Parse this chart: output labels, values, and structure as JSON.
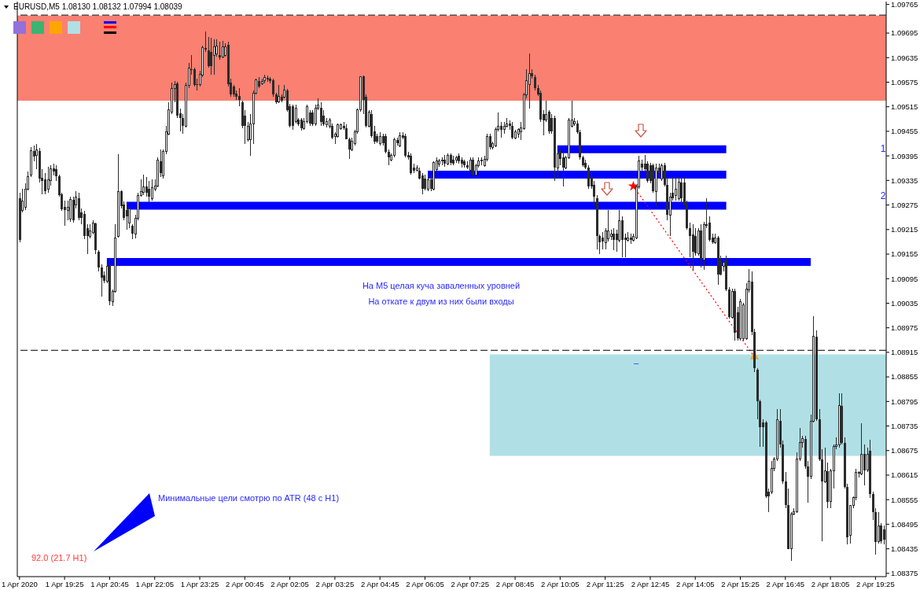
{
  "chart_data": {
    "type": "candlestick",
    "title": "EURUSD,M5  1.08130 1.08132 1.07994 1.08039",
    "color": "#2b2b2b",
    "x": [
      "2020-04-01T18:05",
      "2020-04-01T18:10",
      "2020-04-01T18:15",
      "2020-04-01T18:20",
      "2020-04-01T18:25",
      "2020-04-01T18:30",
      "2020-04-01T18:35",
      "2020-04-01T18:40",
      "2020-04-01T18:45",
      "2020-04-01T18:50",
      "2020-04-01T18:55",
      "2020-04-01T19:00",
      "2020-04-01T19:05",
      "2020-04-01T19:10",
      "2020-04-01T19:15",
      "2020-04-01T19:20",
      "2020-04-01T19:25",
      "2020-04-01T19:30",
      "2020-04-01T19:35",
      "2020-04-01T19:40",
      "2020-04-01T19:45",
      "2020-04-01T19:50",
      "2020-04-01T19:55",
      "2020-04-01T20:00",
      "2020-04-01T20:05",
      "2020-04-01T20:10",
      "2020-04-01T20:15",
      "2020-04-01T20:20",
      "2020-04-01T20:25",
      "2020-04-01T20:30",
      "2020-04-01T20:35",
      "2020-04-01T20:40",
      "2020-04-01T20:45",
      "2020-04-01T20:50",
      "2020-04-01T20:55",
      "2020-04-01T21:00",
      "2020-04-01T21:05",
      "2020-04-01T21:10",
      "2020-04-01T21:15",
      "2020-04-01T21:20",
      "2020-04-01T21:25",
      "2020-04-01T21:30",
      "2020-04-01T21:35",
      "2020-04-01T21:40",
      "2020-04-01T21:45",
      "2020-04-01T21:50",
      "2020-04-01T21:55",
      "2020-04-01T22:00",
      "2020-04-01T22:05",
      "2020-04-01T22:10",
      "2020-04-01T22:15",
      "2020-04-01T22:20",
      "2020-04-01T22:25",
      "2020-04-01T22:30",
      "2020-04-01T22:35",
      "2020-04-01T22:40",
      "2020-04-01T22:45",
      "2020-04-01T22:50",
      "2020-04-01T22:55",
      "2020-04-01T23:00",
      "2020-04-01T23:05",
      "2020-04-01T23:10",
      "2020-04-01T23:15",
      "2020-04-01T23:20",
      "2020-04-01T23:25",
      "2020-04-01T23:30",
      "2020-04-01T23:35",
      "2020-04-01T23:40",
      "2020-04-01T23:45",
      "2020-04-01T23:50",
      "2020-04-01T23:55",
      "2020-04-02T00:00",
      "2020-04-02T00:05",
      "2020-04-02T00:10",
      "2020-04-02T00:15",
      "2020-04-02T00:20",
      "2020-04-02T00:25",
      "2020-04-02T00:30",
      "2020-04-02T00:35",
      "2020-04-02T00:40",
      "2020-04-02T00:45",
      "2020-04-02T00:50",
      "2020-04-02T00:55",
      "2020-04-02T01:00",
      "2020-04-02T01:05",
      "2020-04-02T01:10",
      "2020-04-02T01:15",
      "2020-04-02T01:20",
      "2020-04-02T01:25",
      "2020-04-02T01:30",
      "2020-04-02T01:35",
      "2020-04-02T01:40",
      "2020-04-02T01:45",
      "2020-04-02T01:50",
      "2020-04-02T01:55",
      "2020-04-02T02:00",
      "2020-04-02T02:05",
      "2020-04-02T02:10",
      "2020-04-02T02:15",
      "2020-04-02T02:20",
      "2020-04-02T02:25",
      "2020-04-02T02:30",
      "2020-04-02T02:35",
      "2020-04-02T02:40",
      "2020-04-02T02:45",
      "2020-04-02T02:50",
      "2020-04-02T02:55",
      "2020-04-02T03:00",
      "2020-04-02T03:05",
      "2020-04-02T03:10",
      "2020-04-02T03:15",
      "2020-04-02T03:20",
      "2020-04-02T03:25",
      "2020-04-02T03:30",
      "2020-04-02T03:35",
      "2020-04-02T03:40",
      "2020-04-02T03:45",
      "2020-04-02T03:50",
      "2020-04-02T03:55",
      "2020-04-02T04:00",
      "2020-04-02T04:05",
      "2020-04-02T04:10",
      "2020-04-02T04:15",
      "2020-04-02T04:20",
      "2020-04-02T04:25",
      "2020-04-02T04:30",
      "2020-04-02T04:35",
      "2020-04-02T04:40",
      "2020-04-02T04:45",
      "2020-04-02T04:50",
      "2020-04-02T04:55",
      "2020-04-02T05:00",
      "2020-04-02T05:05",
      "2020-04-02T05:10",
      "2020-04-02T05:15",
      "2020-04-02T05:20",
      "2020-04-02T05:25",
      "2020-04-02T05:30",
      "2020-04-02T05:35",
      "2020-04-02T05:40",
      "2020-04-02T05:45",
      "2020-04-02T05:50",
      "2020-04-02T05:55",
      "2020-04-02T06:00",
      "2020-04-02T06:05",
      "2020-04-02T06:10",
      "2020-04-02T06:15",
      "2020-04-02T06:20",
      "2020-04-02T06:25",
      "2020-04-02T06:30",
      "2020-04-02T06:35",
      "2020-04-02T06:40",
      "2020-04-02T06:45",
      "2020-04-02T06:50",
      "2020-04-02T06:55",
      "2020-04-02T07:00",
      "2020-04-02T07:05",
      "2020-04-02T07:10",
      "2020-04-02T07:15",
      "2020-04-02T07:20",
      "2020-04-02T07:25",
      "2020-04-02T07:30",
      "2020-04-02T07:35",
      "2020-04-02T07:40",
      "2020-04-02T07:45",
      "2020-04-02T07:50",
      "2020-04-02T07:55",
      "2020-04-02T08:00",
      "2020-04-02T08:05",
      "2020-04-02T08:10",
      "2020-04-02T08:15",
      "2020-04-02T08:20",
      "2020-04-02T08:25",
      "2020-04-02T08:30",
      "2020-04-02T08:35",
      "2020-04-02T08:40",
      "2020-04-02T08:45",
      "2020-04-02T08:50",
      "2020-04-02T08:55",
      "2020-04-02T09:00",
      "2020-04-02T09:05",
      "2020-04-02T09:10",
      "2020-04-02T09:15",
      "2020-04-02T09:20",
      "2020-04-02T09:25",
      "2020-04-02T09:30",
      "2020-04-02T09:35",
      "2020-04-02T09:40",
      "2020-04-02T09:45",
      "2020-04-02T09:50",
      "2020-04-02T09:55",
      "2020-04-02T10:00",
      "2020-04-02T10:05",
      "2020-04-02T10:10",
      "2020-04-02T10:15",
      "2020-04-02T10:20",
      "2020-04-02T10:25",
      "2020-04-02T10:30",
      "2020-04-02T10:35",
      "2020-04-02T10:40",
      "2020-04-02T10:45",
      "2020-04-02T10:50",
      "2020-04-02T10:55",
      "2020-04-02T11:00",
      "2020-04-02T11:05",
      "2020-04-02T11:10",
      "2020-04-02T11:15",
      "2020-04-02T11:20",
      "2020-04-02T11:25",
      "2020-04-02T11:30",
      "2020-04-02T11:35",
      "2020-04-02T11:40",
      "2020-04-02T11:45",
      "2020-04-02T11:50",
      "2020-04-02T11:55",
      "2020-04-02T12:00",
      "2020-04-02T12:05",
      "2020-04-02T12:10",
      "2020-04-02T12:15",
      "2020-04-02T12:20",
      "2020-04-02T12:25",
      "2020-04-02T12:30",
      "2020-04-02T12:35",
      "2020-04-02T12:40",
      "2020-04-02T12:45",
      "2020-04-02T12:50",
      "2020-04-02T12:55",
      "2020-04-02T13:00",
      "2020-04-02T13:05",
      "2020-04-02T13:10",
      "2020-04-02T13:15",
      "2020-04-02T13:20",
      "2020-04-02T13:25",
      "2020-04-02T13:30",
      "2020-04-02T13:35",
      "2020-04-02T13:40",
      "2020-04-02T13:45",
      "2020-04-02T13:50",
      "2020-04-02T13:55",
      "2020-04-02T14:00",
      "2020-04-02T14:05",
      "2020-04-02T14:10",
      "2020-04-02T14:15",
      "2020-04-02T14:20",
      "2020-04-02T14:25",
      "2020-04-02T14:30",
      "2020-04-02T14:35",
      "2020-04-02T14:40",
      "2020-04-02T14:45",
      "2020-04-02T14:50",
      "2020-04-02T14:55",
      "2020-04-02T15:00",
      "2020-04-02T15:05",
      "2020-04-02T15:10",
      "2020-04-02T15:15",
      "2020-04-02T15:20",
      "2020-04-02T15:25",
      "2020-04-02T15:30",
      "2020-04-02T15:35",
      "2020-04-02T15:40",
      "2020-04-02T15:45",
      "2020-04-02T15:50",
      "2020-04-02T15:55",
      "2020-04-02T16:00",
      "2020-04-02T16:05",
      "2020-04-02T16:10",
      "2020-04-02T16:15",
      "2020-04-02T16:20",
      "2020-04-02T16:25",
      "2020-04-02T16:30",
      "2020-04-02T16:35",
      "2020-04-02T16:40",
      "2020-04-02T16:45",
      "2020-04-02T16:50",
      "2020-04-02T16:55",
      "2020-04-02T17:00",
      "2020-04-02T17:05",
      "2020-04-02T17:10",
      "2020-04-02T17:15",
      "2020-04-02T17:20",
      "2020-04-02T17:25",
      "2020-04-02T17:30",
      "2020-04-02T17:35",
      "2020-04-02T17:40",
      "2020-04-02T17:45",
      "2020-04-02T17:50",
      "2020-04-02T17:55",
      "2020-04-02T18:00",
      "2020-04-02T18:05",
      "2020-04-02T18:10",
      "2020-04-02T18:15",
      "2020-04-02T18:20",
      "2020-04-02T18:25",
      "2020-04-02T18:30",
      "2020-04-02T18:35",
      "2020-04-02T18:40",
      "2020-04-02T18:45",
      "2020-04-02T18:50",
      "2020-04-02T18:55",
      "2020-04-02T19:00",
      "2020-04-02T19:05",
      "2020-04-02T19:10",
      "2020-04-02T19:15",
      "2020-04-02T19:20",
      "2020-04-02T19:25",
      "2020-04-02T19:30",
      "2020-04-02T19:35",
      "2020-04-02T19:40"
    ],
    "ohlc": [
      [
        1.09291,
        1.09305,
        1.09183,
        1.09189
      ],
      [
        1.09262,
        1.09314,
        1.09256,
        1.09285
      ],
      [
        1.0927,
        1.09328,
        1.09262,
        1.09314
      ],
      [
        1.09314,
        1.09357,
        1.0931,
        1.09345
      ],
      [
        1.09349,
        1.09416,
        1.09343,
        1.09407
      ],
      [
        1.09407,
        1.0942,
        1.09382,
        1.09393
      ],
      [
        1.09397,
        1.09424,
        1.09362,
        1.0941
      ],
      [
        1.09407,
        1.09414,
        1.0933,
        1.09339
      ],
      [
        1.09341,
        1.09362,
        1.09301,
        1.09334
      ],
      [
        1.09337,
        1.09353,
        1.09301,
        1.09308
      ],
      [
        1.09314,
        1.09368,
        1.09305,
        1.09337
      ],
      [
        1.09334,
        1.09372,
        1.09322,
        1.09364
      ],
      [
        1.09364,
        1.09376,
        1.09347,
        1.09357
      ],
      [
        1.09362,
        1.09372,
        1.09334,
        1.09345
      ],
      [
        1.09345,
        1.09349,
        1.09295,
        1.09299
      ],
      [
        1.09301,
        1.09305,
        1.0926,
        1.09264
      ],
      [
        1.0927,
        1.09285,
        1.09224,
        1.09262
      ],
      [
        1.09262,
        1.09285,
        1.09237,
        1.0927
      ],
      [
        1.09241,
        1.09295,
        1.09233,
        1.09289
      ],
      [
        1.09287,
        1.09295,
        1.09231,
        1.09237
      ],
      [
        1.09276,
        1.09308,
        1.09266,
        1.09295
      ],
      [
        1.09291,
        1.09305,
        1.09237,
        1.09243
      ],
      [
        1.09256,
        1.09266,
        1.09228,
        1.09243
      ],
      [
        1.09253,
        1.0926,
        1.09191,
        1.09199
      ],
      [
        1.09218,
        1.09228,
        1.09155,
        1.09199
      ],
      [
        1.09199,
        1.09228,
        1.09193,
        1.09212
      ],
      [
        1.09208,
        1.09237,
        1.09203,
        1.0923
      ],
      [
        1.0923,
        1.09231,
        1.09155,
        1.09164
      ],
      [
        1.0916,
        1.09164,
        1.09112,
        1.09122
      ],
      [
        1.09122,
        1.09131,
        1.09051,
        1.09097
      ],
      [
        1.09103,
        1.09112,
        1.09083,
        1.09089
      ],
      [
        1.09089,
        1.09131,
        1.09083,
        1.09126
      ],
      [
        1.09128,
        1.09141,
        1.09031,
        1.09039
      ],
      [
        1.09039,
        1.09068,
        1.09029,
        1.09064
      ],
      [
        1.09064,
        1.09228,
        1.0906,
        1.09195
      ],
      [
        1.09199,
        1.09399,
        1.09195,
        1.09308
      ],
      [
        1.09308,
        1.0931,
        1.09266,
        1.09272
      ],
      [
        1.09276,
        1.09283,
        1.09237,
        1.09243
      ],
      [
        1.09262,
        1.09276,
        1.09214,
        1.09247
      ],
      [
        1.09231,
        1.09272,
        1.09218,
        1.09266
      ],
      [
        1.09224,
        1.09228,
        1.09191,
        1.09205
      ],
      [
        1.09205,
        1.09251,
        1.09193,
        1.09243
      ],
      [
        1.09243,
        1.09305,
        1.09237,
        1.09299
      ],
      [
        1.09299,
        1.09337,
        1.09295,
        1.09308
      ],
      [
        1.09305,
        1.09349,
        1.09299,
        1.0932
      ],
      [
        1.0932,
        1.09343,
        1.09295,
        1.09305
      ],
      [
        1.09314,
        1.09334,
        1.0928,
        1.09295
      ],
      [
        1.09291,
        1.09337,
        1.09285,
        1.09318
      ],
      [
        1.09314,
        1.09337,
        1.09308,
        1.09322
      ],
      [
        1.09322,
        1.09391,
        1.09318,
        1.09385
      ],
      [
        1.09382,
        1.0941,
        1.09343,
        1.09353
      ],
      [
        1.09347,
        1.0941,
        1.09339,
        1.09405
      ],
      [
        1.09405,
        1.09468,
        1.09399,
        1.09453
      ],
      [
        1.09449,
        1.09526,
        1.09445,
        1.09507
      ],
      [
        1.09501,
        1.09574,
        1.09497,
        1.09559
      ],
      [
        1.09559,
        1.09578,
        1.09526,
        1.0957
      ],
      [
        1.09572,
        1.09576,
        1.09487,
        1.09493
      ],
      [
        1.09499,
        1.0951,
        1.09455,
        1.09487
      ],
      [
        1.09487,
        1.09497,
        1.09449,
        1.09468
      ],
      [
        1.09468,
        1.09574,
        1.09464,
        1.09568
      ],
      [
        1.09568,
        1.09622,
        1.09561,
        1.09609
      ],
      [
        1.09607,
        1.09641,
        1.09593,
        1.09605
      ],
      [
        1.09607,
        1.09611,
        1.09564,
        1.09568
      ],
      [
        1.0957,
        1.09584,
        1.09555,
        1.09568
      ],
      [
        1.0957,
        1.09603,
        1.09564,
        1.09595
      ],
      [
        1.09593,
        1.09664,
        1.09587,
        1.09659
      ],
      [
        1.09659,
        1.09699,
        1.09649,
        1.09655
      ],
      [
        1.09653,
        1.09686,
        1.09611,
        1.09614
      ],
      [
        1.09649,
        1.09684,
        1.09593,
        1.09614
      ],
      [
        1.09641,
        1.0968,
        1.09593,
        1.09661
      ],
      [
        1.09645,
        1.0968,
        1.09637,
        1.09664
      ],
      [
        1.09641,
        1.09674,
        1.0963,
        1.09636
      ],
      [
        1.09637,
        1.09676,
        1.09634,
        1.09662
      ],
      [
        1.09641,
        1.0967,
        1.09637,
        1.09661
      ],
      [
        1.09666,
        1.09674,
        1.09564,
        1.0957
      ],
      [
        1.09574,
        1.09584,
        1.09539,
        1.09545
      ],
      [
        1.09564,
        1.09568,
        1.09539,
        1.09545
      ],
      [
        1.09547,
        1.09555,
        1.09532,
        1.09539
      ],
      [
        1.09541,
        1.09561,
        1.09516,
        1.09532
      ],
      [
        1.09526,
        1.0953,
        1.09462,
        1.09468
      ],
      [
        1.09493,
        1.09507,
        1.09424,
        1.09468
      ],
      [
        1.09434,
        1.09478,
        1.0943,
        1.09468
      ],
      [
        1.09434,
        1.09497,
        1.09395,
        1.09474
      ],
      [
        1.09474,
        1.09555,
        1.09424,
        1.09549
      ],
      [
        1.09549,
        1.09584,
        1.09545,
        1.0958
      ],
      [
        1.09578,
        1.09587,
        1.09561,
        1.09564
      ],
      [
        1.09572,
        1.09584,
        1.09568,
        1.09576
      ],
      [
        1.09578,
        1.09593,
        1.09572,
        1.09586
      ],
      [
        1.09586,
        1.09591,
        1.09576,
        1.09582
      ],
      [
        1.09584,
        1.09587,
        1.09572,
        1.09578
      ],
      [
        1.0958,
        1.09584,
        1.09539,
        1.09545
      ],
      [
        1.09545,
        1.09549,
        1.09522,
        1.09526
      ],
      [
        1.09526,
        1.09568,
        1.09524,
        1.09541
      ],
      [
        1.09539,
        1.09545,
        1.09526,
        1.0953
      ],
      [
        1.09539,
        1.09568,
        1.09536,
        1.09555
      ],
      [
        1.09555,
        1.09559,
        1.09503,
        1.09507
      ],
      [
        1.09516,
        1.09522,
        1.09464,
        1.09468
      ],
      [
        1.09516,
        1.0952,
        1.09459,
        1.09468
      ],
      [
        1.09478,
        1.0952,
        1.09474,
        1.09512
      ],
      [
        1.09484,
        1.09487,
        1.09468,
        1.09472
      ],
      [
        1.09484,
        1.09487,
        1.09457,
        1.09462
      ],
      [
        1.09462,
        1.09487,
        1.09459,
        1.09478
      ],
      [
        1.09478,
        1.0952,
        1.09474,
        1.09516
      ],
      [
        1.09501,
        1.09507,
        1.09468,
        1.09474
      ],
      [
        1.09501,
        1.09507,
        1.09468,
        1.09472
      ],
      [
        1.09474,
        1.0952,
        1.09468,
        1.09512
      ],
      [
        1.09512,
        1.09536,
        1.09507,
        1.0952
      ],
      [
        1.09512,
        1.09526,
        1.09468,
        1.09478
      ],
      [
        1.09493,
        1.09507,
        1.09468,
        1.09472
      ],
      [
        1.09472,
        1.09487,
        1.09464,
        1.09478
      ],
      [
        1.09468,
        1.09487,
        1.09462,
        1.09482
      ],
      [
        1.09468,
        1.09474,
        1.09435,
        1.09439
      ],
      [
        1.09443,
        1.09453,
        1.09424,
        1.09449
      ],
      [
        1.09443,
        1.09474,
        1.09439,
        1.09472
      ],
      [
        1.09462,
        1.09474,
        1.09459,
        1.09472
      ],
      [
        1.09468,
        1.09478,
        1.09459,
        1.09462
      ],
      [
        1.09462,
        1.09472,
        1.09435,
        1.09435
      ],
      [
        1.09435,
        1.09439,
        1.09387,
        1.0941
      ],
      [
        1.0941,
        1.09439,
        1.09407,
        1.0943
      ],
      [
        1.09426,
        1.09459,
        1.0942,
        1.09453
      ],
      [
        1.09453,
        1.0951,
        1.09449,
        1.09507
      ],
      [
        1.09507,
        1.09589,
        1.09503,
        1.09589
      ],
      [
        1.09589,
        1.09591,
        1.09497,
        1.09532
      ],
      [
        1.09539,
        1.09545,
        1.09464,
        1.09468
      ],
      [
        1.09468,
        1.09507,
        1.09464,
        1.09501
      ],
      [
        1.09497,
        1.09507,
        1.09439,
        1.09443
      ],
      [
        1.09455,
        1.09468,
        1.09424,
        1.0943
      ],
      [
        1.09443,
        1.09449,
        1.09426,
        1.0943
      ],
      [
        1.09426,
        1.09453,
        1.0942,
        1.09443
      ],
      [
        1.09443,
        1.09449,
        1.0942,
        1.09426
      ],
      [
        1.09443,
        1.09449,
        1.09401,
        1.09405
      ],
      [
        1.09405,
        1.0941,
        1.09372,
        1.09391
      ],
      [
        1.09385,
        1.09401,
        1.09382,
        1.09397
      ],
      [
        1.09397,
        1.09439,
        1.09391,
        1.09434
      ],
      [
        1.09434,
        1.09439,
        1.0942,
        1.09426
      ],
      [
        1.0942,
        1.09453,
        1.09416,
        1.09445
      ],
      [
        1.09445,
        1.09453,
        1.09435,
        1.09439
      ],
      [
        1.09443,
        1.09449,
        1.09391,
        1.09395
      ],
      [
        1.09397,
        1.09405,
        1.09385,
        1.09391
      ],
      [
        1.09395,
        1.09401,
        1.09349,
        1.09353
      ],
      [
        1.09366,
        1.09376,
        1.09353,
        1.09359
      ],
      [
        1.09359,
        1.09372,
        1.09357,
        1.09366
      ],
      [
        1.09359,
        1.09366,
        1.09337,
        1.09339
      ],
      [
        1.09347,
        1.09353,
        1.09301,
        1.09314
      ],
      [
        1.09339,
        1.09349,
        1.0931,
        1.09314
      ],
      [
        1.09314,
        1.09343,
        1.09308,
        1.09337
      ],
      [
        1.09337,
        1.09349,
        1.09308,
        1.09314
      ],
      [
        1.09314,
        1.09382,
        1.0931,
        1.09378
      ],
      [
        1.09362,
        1.09391,
        1.09359,
        1.09382
      ],
      [
        1.09376,
        1.09387,
        1.09368,
        1.09382
      ],
      [
        1.09382,
        1.09391,
        1.09372,
        1.09385
      ],
      [
        1.09385,
        1.09397,
        1.09368,
        1.09376
      ],
      [
        1.09376,
        1.09401,
        1.09372,
        1.09397
      ],
      [
        1.09397,
        1.09401,
        1.09372,
        1.09378
      ],
      [
        1.09385,
        1.09395,
        1.09372,
        1.09376
      ],
      [
        1.09385,
        1.09395,
        1.09378,
        1.09391
      ],
      [
        1.09395,
        1.09401,
        1.09376,
        1.09382
      ],
      [
        1.09385,
        1.09391,
        1.09366,
        1.09376
      ],
      [
        1.09382,
        1.09385,
        1.09366,
        1.09372
      ],
      [
        1.09372,
        1.09382,
        1.09362,
        1.09366
      ],
      [
        1.09359,
        1.09391,
        1.09357,
        1.09385
      ],
      [
        1.09385,
        1.09391,
        1.09345,
        1.09349
      ],
      [
        1.09349,
        1.09376,
        1.09345,
        1.09372
      ],
      [
        1.09372,
        1.09391,
        1.09366,
        1.09382
      ],
      [
        1.09382,
        1.09391,
        1.09372,
        1.09385
      ],
      [
        1.09372,
        1.09395,
        1.09368,
        1.09387
      ],
      [
        1.09387,
        1.09449,
        1.09382,
        1.09443
      ],
      [
        1.09443,
        1.09449,
        1.0941,
        1.09416
      ],
      [
        1.09416,
        1.0943,
        1.0941,
        1.09426
      ],
      [
        1.0942,
        1.09464,
        1.09416,
        1.09459
      ],
      [
        1.09459,
        1.09501,
        1.09455,
        1.09468
      ],
      [
        1.09468,
        1.09478,
        1.09439,
        1.09459
      ],
      [
        1.09459,
        1.09478,
        1.09449,
        1.09468
      ],
      [
        1.09468,
        1.09487,
        1.09464,
        1.09474
      ],
      [
        1.09474,
        1.09482,
        1.09459,
        1.09468
      ],
      [
        1.09468,
        1.09478,
        1.09435,
        1.09439
      ],
      [
        1.09439,
        1.09459,
        1.09435,
        1.09453
      ],
      [
        1.09449,
        1.09462,
        1.09439,
        1.09459
      ],
      [
        1.09453,
        1.09478,
        1.09434,
        1.09464
      ],
      [
        1.09462,
        1.09549,
        1.09459,
        1.09545
      ],
      [
        1.09545,
        1.09607,
        1.09536,
        1.09578
      ],
      [
        1.0957,
        1.09645,
        1.0951,
        1.09597
      ],
      [
        1.09597,
        1.09607,
        1.09584,
        1.09589
      ],
      [
        1.09587,
        1.09593,
        1.09555,
        1.09561
      ],
      [
        1.09561,
        1.09568,
        1.09541,
        1.09545
      ],
      [
        1.09549,
        1.09555,
        1.09478,
        1.09484
      ],
      [
        1.09497,
        1.09507,
        1.09445,
        1.09482
      ],
      [
        1.09482,
        1.0953,
        1.09478,
        1.09497
      ],
      [
        1.09503,
        1.09507,
        1.09449,
        1.09455
      ],
      [
        1.09487,
        1.09497,
        1.09449,
        1.09455
      ],
      [
        1.09487,
        1.09493,
        1.09334,
        1.09366
      ],
      [
        1.09366,
        1.0941,
        1.09339,
        1.09401
      ],
      [
        1.09405,
        1.0941,
        1.09372,
        1.09387
      ],
      [
        1.09391,
        1.09401,
        1.0932,
        1.09366
      ],
      [
        1.09366,
        1.09395,
        1.09362,
        1.09391
      ],
      [
        1.09391,
        1.09487,
        1.09387,
        1.09482
      ],
      [
        1.09468,
        1.0953,
        1.09464,
        1.09482
      ],
      [
        1.09474,
        1.09487,
        1.09468,
        1.09478
      ],
      [
        1.09474,
        1.09482,
        1.09449,
        1.09453
      ],
      [
        1.09453,
        1.09459,
        1.09385,
        1.09391
      ],
      [
        1.09391,
        1.09395,
        1.09368,
        1.09372
      ],
      [
        1.09378,
        1.09385,
        1.09362,
        1.09366
      ],
      [
        1.09366,
        1.09372,
        1.09314,
        1.0932
      ],
      [
        1.09343,
        1.09357,
        1.09314,
        1.0932
      ],
      [
        1.09324,
        1.09334,
        1.09272,
        1.09295
      ],
      [
        1.09291,
        1.09299,
        1.09166,
        1.09199
      ],
      [
        1.09199,
        1.09203,
        1.09155,
        1.09183
      ],
      [
        1.09195,
        1.09208,
        1.09166,
        1.09185
      ],
      [
        1.09183,
        1.09218,
        1.09166,
        1.09212
      ],
      [
        1.09193,
        1.09262,
        1.09185,
        1.09212
      ],
      [
        1.09199,
        1.09214,
        1.09189,
        1.09205
      ],
      [
        1.09205,
        1.09218,
        1.09164,
        1.09189
      ],
      [
        1.09205,
        1.09214,
        1.0916,
        1.09189
      ],
      [
        1.09189,
        1.09262,
        1.09183,
        1.09237
      ],
      [
        1.09237,
        1.09247,
        1.09147,
        1.09189
      ],
      [
        1.09195,
        1.09205,
        1.09147,
        1.09189
      ],
      [
        1.09189,
        1.09208,
        1.09185,
        1.09195
      ],
      [
        1.09195,
        1.09205,
        1.0918,
        1.09189
      ],
      [
        1.09189,
        1.09205,
        1.09185,
        1.09199
      ],
      [
        1.09195,
        1.09324,
        1.09191,
        1.0932
      ],
      [
        1.0932,
        1.09395,
        1.09314,
        1.09382
      ],
      [
        1.09376,
        1.09385,
        1.09357,
        1.09366
      ],
      [
        1.09376,
        1.09397,
        1.09357,
        1.09362
      ],
      [
        1.09376,
        1.09382,
        1.0933,
        1.09334
      ],
      [
        1.09372,
        1.09378,
        1.09328,
        1.09334
      ],
      [
        1.09372,
        1.09376,
        1.09305,
        1.09308
      ],
      [
        1.09308,
        1.09376,
        1.0927,
        1.09366
      ],
      [
        1.09366,
        1.09376,
        1.09343,
        1.09353
      ],
      [
        1.09339,
        1.09376,
        1.09334,
        1.09372
      ],
      [
        1.09372,
        1.09378,
        1.0932,
        1.09324
      ],
      [
        1.09324,
        1.09343,
        1.09237,
        1.09251
      ],
      [
        1.09251,
        1.09305,
        1.09199,
        1.09295
      ],
      [
        1.09305,
        1.09343,
        1.09285,
        1.09291
      ],
      [
        1.09299,
        1.09343,
        1.09285,
        1.09314
      ],
      [
        1.09291,
        1.09343,
        1.09285,
        1.0933
      ],
      [
        1.0933,
        1.09343,
        1.09276,
        1.09291
      ],
      [
        1.0933,
        1.09343,
        1.09272,
        1.09276
      ],
      [
        1.09276,
        1.09285,
        1.09214,
        1.09218
      ],
      [
        1.09218,
        1.09231,
        1.09147,
        1.09199
      ],
      [
        1.09203,
        1.09228,
        1.09116,
        1.0916
      ],
      [
        1.09199,
        1.09218,
        1.09151,
        1.09156
      ],
      [
        1.09156,
        1.09218,
        1.09151,
        1.09212
      ],
      [
        1.09212,
        1.09228,
        1.09122,
        1.09141
      ],
      [
        1.09141,
        1.09233,
        1.09116,
        1.09228
      ],
      [
        1.09228,
        1.09291,
        1.09218,
        1.09224
      ],
      [
        1.09231,
        1.09247,
        1.09185,
        1.09189
      ],
      [
        1.09195,
        1.09205,
        1.0918,
        1.09183
      ],
      [
        1.09183,
        1.09205,
        1.0918,
        1.09195
      ],
      [
        1.09195,
        1.09199,
        1.0908,
        1.09106
      ],
      [
        1.09141,
        1.09151,
        1.09103,
        1.09106
      ],
      [
        1.09126,
        1.09141,
        1.09112,
        1.09135
      ],
      [
        1.09141,
        1.09151,
        1.09064,
        1.09068
      ],
      [
        1.09068,
        1.09074,
        1.08997,
        1.09001
      ],
      [
        1.09001,
        1.0907,
        1.08997,
        1.09064
      ],
      [
        1.09064,
        1.0907,
        1.08943,
        1.08962
      ],
      [
        1.09012,
        1.09026,
        1.08943,
        1.08949
      ],
      [
        1.08949,
        1.09045,
        1.08943,
        1.09039
      ],
      [
        1.08949,
        1.09035,
        1.08943,
        1.09031
      ],
      [
        1.08949,
        1.09083,
        1.08945,
        1.0907
      ],
      [
        1.09068,
        1.09118,
        1.0906,
        1.09089
      ],
      [
        1.09087,
        1.09112,
        1.08958,
        1.08964
      ],
      [
        1.08964,
        1.08972,
        1.08866,
        1.08876
      ],
      [
        1.08872,
        1.08876,
        1.08751,
        1.08795
      ],
      [
        1.08795,
        1.08799,
        1.08685,
        1.08733
      ],
      [
        1.08743,
        1.08751,
        1.08685,
        1.08733
      ],
      [
        1.08743,
        1.08747,
        1.0856,
        1.08564
      ],
      [
        1.08574,
        1.08583,
        1.08525,
        1.08564
      ],
      [
        1.08574,
        1.0865,
        1.08568,
        1.08631
      ],
      [
        1.08631,
        1.0866,
        1.08625,
        1.08654
      ],
      [
        1.08654,
        1.08776,
        1.0865,
        1.08751
      ],
      [
        1.08747,
        1.08776,
        1.08683,
        1.08689
      ],
      [
        1.08689,
        1.08699,
        1.08593,
        1.08599
      ],
      [
        1.08599,
        1.08622,
        1.08535,
        1.08541
      ],
      [
        1.08541,
        1.08583,
        1.08435,
        1.08435
      ],
      [
        1.08435,
        1.08525,
        1.08406,
        1.0852
      ],
      [
        1.0852,
        1.08535,
        1.08516,
        1.08525
      ],
      [
        1.08525,
        1.0867,
        1.08522,
        1.08654
      ],
      [
        1.08654,
        1.08731,
        1.0865,
        1.08695
      ],
      [
        1.08695,
        1.08712,
        1.08683,
        1.08704
      ],
      [
        1.08704,
        1.08712,
        1.08631,
        1.08637
      ],
      [
        1.08637,
        1.0865,
        1.08548,
        1.08612
      ],
      [
        1.08612,
        1.08762,
        1.08606,
        1.08747
      ],
      [
        1.08747,
        1.09003,
        1.08743,
        1.08954
      ],
      [
        1.08954,
        1.08968,
        1.08747,
        1.08751
      ],
      [
        1.08751,
        1.08776,
        1.0865,
        1.08654
      ],
      [
        1.08654,
        1.08679,
        1.08454,
        1.08599
      ],
      [
        1.08599,
        1.08683,
        1.08595,
        1.08625
      ],
      [
        1.08625,
        1.08645,
        1.08535,
        1.0855
      ],
      [
        1.0855,
        1.08631,
        1.08535,
        1.08625
      ],
      [
        1.08625,
        1.08689,
        1.08583,
        1.08685
      ],
      [
        1.08685,
        1.08708,
        1.08679,
        1.08689
      ],
      [
        1.08689,
        1.08814,
        1.08683,
        1.08785
      ],
      [
        1.08785,
        1.08814,
        1.08689,
        1.08693
      ],
      [
        1.08693,
        1.08708,
        1.08583,
        1.08587
      ],
      [
        1.08587,
        1.08593,
        1.08445,
        1.08464
      ],
      [
        1.08468,
        1.08541,
        1.08448,
        1.08541
      ],
      [
        1.08541,
        1.08564,
        1.08535,
        1.0856
      ],
      [
        1.0856,
        1.08631,
        1.08554,
        1.08622
      ],
      [
        1.08622,
        1.08625,
        1.0861,
        1.08618
      ],
      [
        1.08618,
        1.08741,
        1.08614,
        1.08666
      ],
      [
        1.08666,
        1.08689,
        1.08589,
        1.08627
      ],
      [
        1.08627,
        1.08683,
        1.08622,
        1.08666
      ],
      [
        1.08674,
        1.08702,
        1.0856,
        1.08568
      ],
      [
        1.08568,
        1.08574,
        1.08506,
        1.08525
      ],
      [
        1.08525,
        1.08535,
        1.0842,
        1.08452
      ],
      [
        1.08452,
        1.08525,
        1.08448,
        1.08491
      ],
      [
        1.08491,
        1.08497,
        1.08448,
        1.08454
      ],
      [
        1.08483,
        1.08491,
        1.08445,
        1.08458
      ]
    ],
    "series": [
      {
        "type": "area",
        "color": "#b0e0e6",
        "x": [
          "2020-04-02T08:00",
          "2020-04-02T19:44"
        ],
        "values": [
          null,
          null
        ],
        "lower": [
          1.08662,
          1.08662
        ],
        "upper": [
          1.0891,
          1.0891
        ]
      },
      {
        "type": "line",
        "color": "#0000ff",
        "x": [
          "2020-04-02T10:00",
          "2020-04-02T15:00"
        ],
        "values": [
          1.09411,
          1.09411
        ]
      },
      {
        "type": "line",
        "color": "#0000ff",
        "x": [
          "2020-04-02T06:10",
          "2020-04-02T15:00"
        ],
        "values": [
          1.09349,
          1.09349
        ]
      },
      {
        "type": "line",
        "color": "#0000ff",
        "x": [
          "2020-04-01T21:15",
          "2020-04-02T15:00"
        ],
        "values": [
          1.09273,
          1.09273
        ]
      },
      {
        "type": "line",
        "color": "#0000ff",
        "x": [
          "2020-04-01T20:40",
          "2020-04-02T17:30"
        ],
        "values": [
          1.09136,
          1.09136
        ]
      },
      {
        "type": "line",
        "color": "#ff0000",
        "line_style": "dotted",
        "x": [
          "2020-04-02T12:15",
          "2020-04-02T15:50"
        ],
        "values": [
          1.09321,
          1.08904
        ]
      },
      {
        "type": "scatter",
        "color": "#ff0000",
        "marker": "star",
        "x": [
          "2020-04-02T12:15"
        ],
        "values": [
          1.09321
        ]
      },
      {
        "type": "scatter",
        "color": "#e8a33c",
        "marker": "triangle",
        "x": [
          "2020-04-02T15:50"
        ],
        "values": [
          1.08904
        ]
      }
    ],
    "bands": [
      {
        "axis": "y",
        "from": 1.0953,
        "to": 1.09738,
        "color": "#fa8072"
      }
    ],
    "ref_lines": [
      {
        "axis": "y",
        "value": 1.09739,
        "color": "#000000",
        "line_style": "dashed"
      },
      {
        "axis": "y",
        "value": 1.0892,
        "color": "#000000",
        "line_style": "dashed"
      }
    ],
    "annotations": [
      "На М5 целая куча заваленных уровней",
      "На откате к двум из них были входы",
      "Минимальные цели смотрю по ATR (48 с H1)",
      "92.0 (21.7 H1)",
      "1",
      "2",
      "–"
    ],
    "xlim": [
      "2020-04-01T18:01",
      "2020-04-02T19:44"
    ],
    "ylim": [
      1.08367,
      1.09772
    ],
    "xticks": [
      {
        "value": "2020-04-01T18:05",
        "label": "1 Apr 2020"
      },
      {
        "value": "2020-04-01T19:25",
        "label": "1 Apr 19:25"
      },
      {
        "value": "2020-04-01T20:45",
        "label": "1 Apr 20:45"
      },
      {
        "value": "2020-04-01T22:05",
        "label": "1 Apr 22:05"
      },
      {
        "value": "2020-04-01T23:25",
        "label": "1 Apr 23:25"
      },
      {
        "value": "2020-04-02T00:45",
        "label": "2 Apr 00:45"
      },
      {
        "value": "2020-04-02T02:05",
        "label": "2 Apr 02:05"
      },
      {
        "value": "2020-04-02T03:25",
        "label": "2 Apr 03:25"
      },
      {
        "value": "2020-04-02T04:45",
        "label": "2 Apr 04:45"
      },
      {
        "value": "2020-04-02T06:05",
        "label": "2 Apr 06:05"
      },
      {
        "value": "2020-04-02T07:25",
        "label": "2 Apr 07:25"
      },
      {
        "value": "2020-04-02T08:45",
        "label": "2 Apr 08:45"
      },
      {
        "value": "2020-04-02T10:05",
        "label": "2 Apr 10:05"
      },
      {
        "value": "2020-04-02T11:25",
        "label": "2 Apr 11:25"
      },
      {
        "value": "2020-04-02T12:45",
        "label": "2 Apr 12:45"
      },
      {
        "value": "2020-04-02T14:05",
        "label": "2 Apr 14:05"
      },
      {
        "value": "2020-04-02T15:25",
        "label": "2 Apr 15:25"
      },
      {
        "value": "2020-04-02T16:45",
        "label": "2 Apr 16:45"
      },
      {
        "value": "2020-04-02T18:05",
        "label": "2 Apr 18:05"
      },
      {
        "value": "2020-04-02T19:25",
        "label": "2 Apr 19:25"
      }
    ],
    "yticks": [
      1.08375,
      1.08435,
      1.08495,
      1.08555,
      1.08615,
      1.08675,
      1.08735,
      1.08795,
      1.08855,
      1.08915,
      1.08975,
      1.09035,
      1.09095,
      1.09155,
      1.09215,
      1.09275,
      1.09335,
      1.09395,
      1.09455,
      1.09515,
      1.09575,
      1.09635,
      1.09695,
      1.09765
    ]
  }
}
